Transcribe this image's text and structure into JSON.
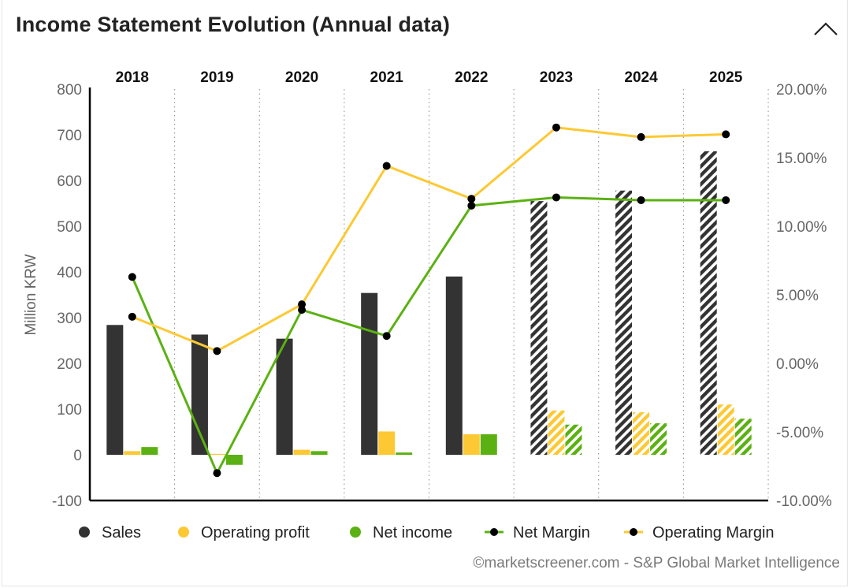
{
  "header": {
    "title": "Income Statement Evolution (Annual data)",
    "collapse_icon": "chevron-up-icon"
  },
  "footer": {
    "credit": "©marketscreener.com - S&P Global Market Intelligence"
  },
  "colors": {
    "sales": "#333333",
    "operating_profit": "#fcc934",
    "net_income": "#5bb112",
    "net_margin_line": "#5bb112",
    "operating_margin_line": "#fcc934",
    "marker": "#000000"
  },
  "chart_data": {
    "type": "bar",
    "title": "Income Statement Evolution (Annual data)",
    "categories": [
      "2018",
      "2019",
      "2020",
      "2021",
      "2022",
      "2023",
      "2024",
      "2025"
    ],
    "estimate_categories": [
      "2023",
      "2024",
      "2025"
    ],
    "ylabel": "Million KRW",
    "ylim": [
      -100,
      800
    ],
    "yticks": [
      -100,
      0,
      100,
      200,
      300,
      400,
      500,
      600,
      700,
      800
    ],
    "y2lim": [
      -10,
      20
    ],
    "y2ticks": [
      "-10.00%",
      "-5.00%",
      "0.00%",
      "5.00%",
      "10.00%",
      "15.00%",
      "20.00%"
    ],
    "grid": "vertical dotted",
    "legend_position": "bottom",
    "series": [
      {
        "name": "Sales",
        "kind": "bar",
        "axis": "left",
        "values": [
          284,
          263,
          254,
          354,
          390,
          555,
          578,
          664
        ]
      },
      {
        "name": "Operating profit",
        "kind": "bar",
        "axis": "left",
        "values": [
          8,
          2,
          11,
          51,
          45,
          97,
          93,
          110
        ]
      },
      {
        "name": "Net income",
        "kind": "bar",
        "axis": "left",
        "values": [
          17,
          -22,
          8,
          5,
          45,
          66,
          69,
          79
        ]
      },
      {
        "name": "Net Margin",
        "kind": "line",
        "axis": "right",
        "values": [
          6.3,
          -8.0,
          3.9,
          2.0,
          11.5,
          12.1,
          11.9,
          11.9
        ]
      },
      {
        "name": "Operating Margin",
        "kind": "line",
        "axis": "right",
        "values": [
          3.4,
          0.9,
          4.3,
          14.4,
          12.0,
          17.2,
          16.5,
          16.7
        ]
      }
    ]
  }
}
